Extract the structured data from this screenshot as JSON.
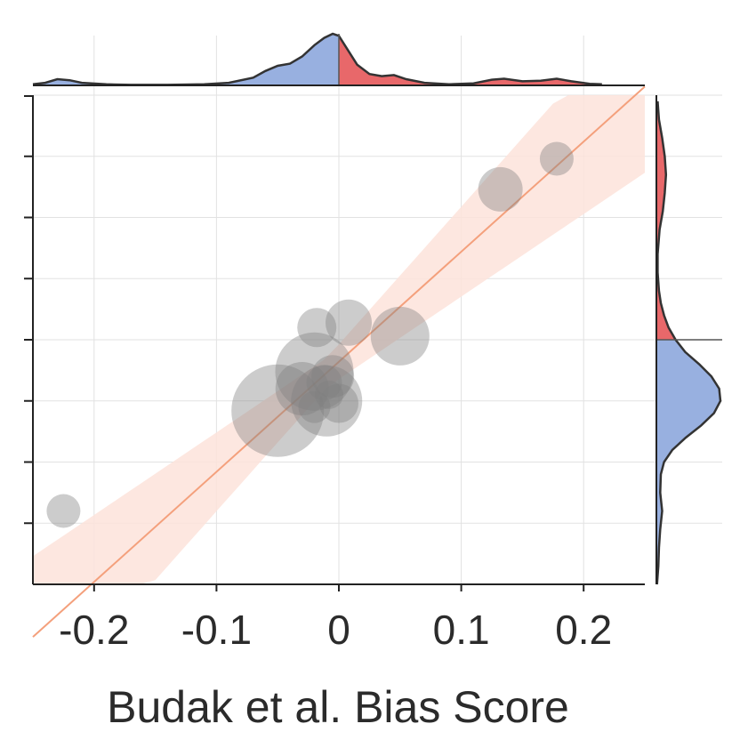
{
  "chart_data": {
    "type": "scatter",
    "xlabel": "Budak et al. Bias Score",
    "ylabel": "",
    "title": "",
    "xlim": [
      -0.25,
      0.25
    ],
    "ylim": [
      -0.2,
      0.2
    ],
    "x_ticks": [
      -0.2,
      -0.1,
      0,
      0.1,
      0.2
    ],
    "x_tick_labels": [
      "-0.2",
      "-0.1",
      "0",
      "0.1",
      "0.2"
    ],
    "y_ticks": [
      -0.15,
      -0.1,
      -0.05,
      0,
      0.05,
      0.1,
      0.15
    ],
    "y_tick_labels": [],
    "grid": true,
    "points": [
      {
        "x": -0.225,
        "y": -0.14,
        "size": 19
      },
      {
        "x": -0.05,
        "y": -0.058,
        "size": 52
      },
      {
        "x": -0.02,
        "y": -0.026,
        "size": 44
      },
      {
        "x": -0.018,
        "y": 0.01,
        "size": 22
      },
      {
        "x": 0.008,
        "y": 0.014,
        "size": 26
      },
      {
        "x": 0.05,
        "y": 0.003,
        "size": 33
      },
      {
        "x": -0.01,
        "y": -0.05,
        "size": 40
      },
      {
        "x": -0.03,
        "y": -0.04,
        "size": 30
      },
      {
        "x": -0.005,
        "y": -0.03,
        "size": 24
      },
      {
        "x": -0.012,
        "y": -0.035,
        "size": 20
      },
      {
        "x": 0.0,
        "y": -0.052,
        "size": 22
      },
      {
        "x": -0.02,
        "y": -0.055,
        "size": 18
      },
      {
        "x": -0.008,
        "y": -0.045,
        "size": 16
      },
      {
        "x": 0.132,
        "y": 0.123,
        "size": 25
      },
      {
        "x": 0.178,
        "y": 0.148,
        "size": 19
      }
    ],
    "regression": {
      "slope": 0.9,
      "intercept": -0.018,
      "ci_half_width_at_mean": 0.012,
      "ci_spread": 0.45,
      "x_mean": -0.01
    },
    "marginal_x_density": [
      {
        "x": -0.25,
        "d": 0.02
      },
      {
        "x": -0.24,
        "d": 0.05
      },
      {
        "x": -0.23,
        "d": 0.12
      },
      {
        "x": -0.22,
        "d": 0.1
      },
      {
        "x": -0.21,
        "d": 0.05
      },
      {
        "x": -0.19,
        "d": 0.02
      },
      {
        "x": -0.17,
        "d": 0.01
      },
      {
        "x": -0.14,
        "d": 0.01
      },
      {
        "x": -0.11,
        "d": 0.02
      },
      {
        "x": -0.09,
        "d": 0.05
      },
      {
        "x": -0.07,
        "d": 0.15
      },
      {
        "x": -0.06,
        "d": 0.28
      },
      {
        "x": -0.05,
        "d": 0.38
      },
      {
        "x": -0.04,
        "d": 0.42
      },
      {
        "x": -0.03,
        "d": 0.56
      },
      {
        "x": -0.02,
        "d": 0.78
      },
      {
        "x": -0.012,
        "d": 0.92
      },
      {
        "x": -0.005,
        "d": 1.0
      },
      {
        "x": 0.0,
        "d": 0.96
      },
      {
        "x": 0.007,
        "d": 0.7
      },
      {
        "x": 0.015,
        "d": 0.4
      },
      {
        "x": 0.025,
        "d": 0.22
      },
      {
        "x": 0.035,
        "d": 0.18
      },
      {
        "x": 0.045,
        "d": 0.2
      },
      {
        "x": 0.055,
        "d": 0.12
      },
      {
        "x": 0.07,
        "d": 0.05
      },
      {
        "x": 0.09,
        "d": 0.02
      },
      {
        "x": 0.11,
        "d": 0.04
      },
      {
        "x": 0.125,
        "d": 0.11
      },
      {
        "x": 0.135,
        "d": 0.13
      },
      {
        "x": 0.15,
        "d": 0.08
      },
      {
        "x": 0.165,
        "d": 0.09
      },
      {
        "x": 0.178,
        "d": 0.13
      },
      {
        "x": 0.19,
        "d": 0.08
      },
      {
        "x": 0.205,
        "d": 0.03
      },
      {
        "x": 0.215,
        "d": 0.02
      }
    ],
    "marginal_y_density": [
      {
        "y": -0.2,
        "d": 0.01
      },
      {
        "y": -0.185,
        "d": 0.03
      },
      {
        "y": -0.17,
        "d": 0.04
      },
      {
        "y": -0.155,
        "d": 0.06
      },
      {
        "y": -0.14,
        "d": 0.09
      },
      {
        "y": -0.125,
        "d": 0.06
      },
      {
        "y": -0.11,
        "d": 0.07
      },
      {
        "y": -0.1,
        "d": 0.12
      },
      {
        "y": -0.09,
        "d": 0.25
      },
      {
        "y": -0.08,
        "d": 0.46
      },
      {
        "y": -0.07,
        "d": 0.7
      },
      {
        "y": -0.06,
        "d": 0.9
      },
      {
        "y": -0.05,
        "d": 1.0
      },
      {
        "y": -0.04,
        "d": 0.98
      },
      {
        "y": -0.03,
        "d": 0.86
      },
      {
        "y": -0.02,
        "d": 0.67
      },
      {
        "y": -0.01,
        "d": 0.45
      },
      {
        "y": 0.0,
        "d": 0.3
      },
      {
        "y": 0.01,
        "d": 0.19
      },
      {
        "y": 0.02,
        "d": 0.12
      },
      {
        "y": 0.03,
        "d": 0.07
      },
      {
        "y": 0.04,
        "d": 0.04
      },
      {
        "y": 0.055,
        "d": 0.02
      },
      {
        "y": 0.07,
        "d": 0.02
      },
      {
        "y": 0.09,
        "d": 0.05
      },
      {
        "y": 0.105,
        "d": 0.1
      },
      {
        "y": 0.12,
        "d": 0.13
      },
      {
        "y": 0.135,
        "d": 0.15
      },
      {
        "y": 0.15,
        "d": 0.13
      },
      {
        "y": 0.165,
        "d": 0.09
      },
      {
        "y": 0.18,
        "d": 0.04
      },
      {
        "y": 0.195,
        "d": 0.02
      }
    ],
    "colors": {
      "points": "#7f7f7f",
      "point_opacity": 0.4,
      "regression_line": "#f4a07c",
      "ci_band": "#fde3da",
      "negative_fill": "#98b0e0",
      "positive_fill": "#e8686a",
      "density_line": "#333333",
      "grid": "#e2e2e2",
      "axis": "#222222"
    }
  }
}
